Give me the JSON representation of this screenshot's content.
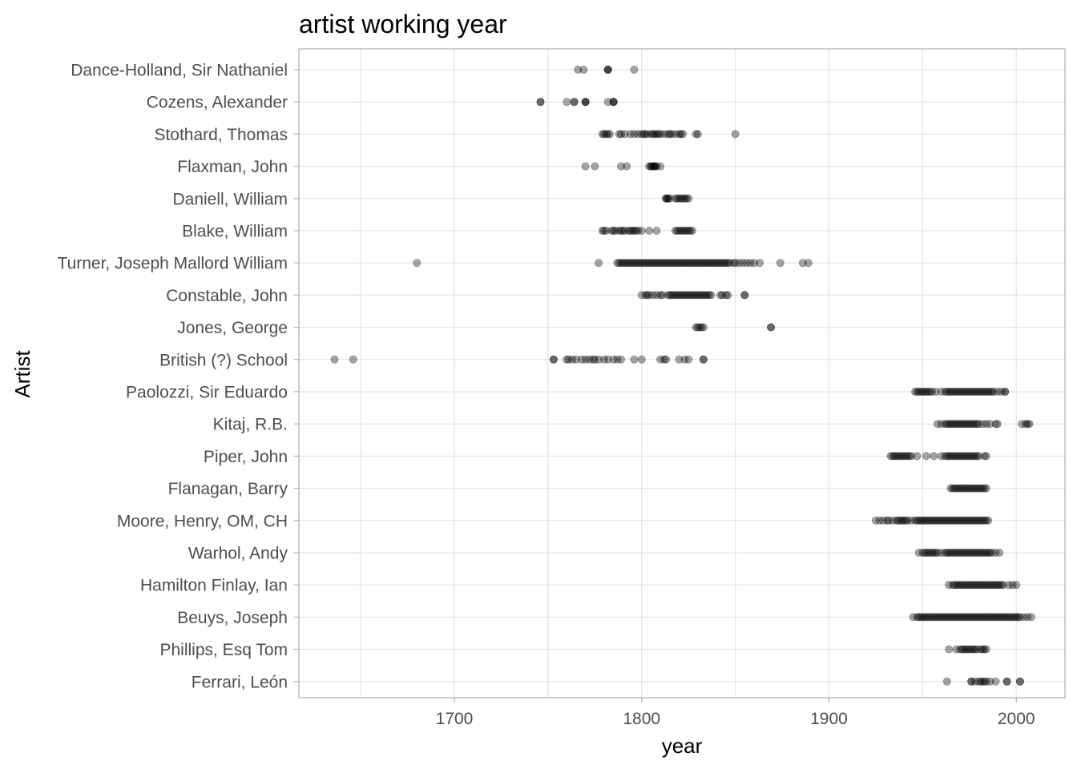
{
  "chart_data": {
    "type": "scatter",
    "title": "artist working year",
    "xlabel": "year",
    "ylabel": "Artist",
    "xlim": [
      1617,
      2026
    ],
    "x_ticks": [
      1700,
      1800,
      1900,
      2000
    ],
    "grid": true,
    "point_color": "#000000",
    "point_opacity": 0.35,
    "categories": [
      "Dance-Holland, Sir Nathaniel",
      "Cozens, Alexander",
      "Stothard, Thomas",
      "Flaxman, John",
      "Daniell, William",
      "Blake, William",
      "Turner, Joseph Mallord William",
      "Constable, John",
      "Jones, George",
      "British (?) School",
      "Paolozzi, Sir Eduardo",
      "Kitaj, R.B.",
      "Piper, John",
      "Flanagan, Barry",
      "Moore, Henry, OM, CH",
      "Warhol, Andy",
      "Hamilton Finlay, Ian",
      "Beuys, Joseph",
      "Phillips, Esq Tom",
      "Ferrari, León"
    ],
    "series": [
      {
        "category": "Dance-Holland, Sir Nathaniel",
        "years": [
          1766,
          1769,
          1782,
          1782,
          1782,
          1796
        ]
      },
      {
        "category": "Cozens, Alexander",
        "years": [
          1746,
          1746,
          1760,
          1764,
          1764,
          1770,
          1770,
          1770,
          1782,
          1785,
          1785,
          1785
        ]
      },
      {
        "category": "Stothard, Thomas",
        "years": [
          1779,
          1780,
          1781,
          1782,
          1783,
          1788,
          1789,
          1791,
          1794,
          1796,
          1798,
          1800,
          1801,
          1802,
          1803,
          1805,
          1806,
          1807,
          1808,
          1809,
          1810,
          1812,
          1814,
          1815,
          1816,
          1818,
          1820,
          1821,
          1822,
          1829,
          1830,
          1850
        ]
      },
      {
        "category": "Flaxman, John",
        "years": [
          1770,
          1775,
          1789,
          1792,
          1804,
          1805,
          1805,
          1806,
          1807,
          1807,
          1807,
          1808,
          1810
        ]
      },
      {
        "category": "Daniell, William",
        "years": [
          1813,
          1813,
          1814,
          1814,
          1815,
          1818,
          1819,
          1820,
          1821,
          1822,
          1823,
          1824,
          1825
        ]
      },
      {
        "category": "Blake, William",
        "years": [
          1779,
          1780,
          1781,
          1784,
          1785,
          1786,
          1788,
          1789,
          1790,
          1791,
          1793,
          1794,
          1795,
          1796,
          1797,
          1798,
          1800,
          1804,
          1808,
          1818,
          1819,
          1820,
          1821,
          1822,
          1823,
          1824,
          1825,
          1826,
          1827
        ]
      },
      {
        "category": "Turner, Joseph Mallord William",
        "years": [
          1680,
          1777,
          1787,
          1788,
          1789,
          1790,
          1791,
          1792,
          1793,
          1794,
          1795,
          1796,
          1797,
          1798,
          1799,
          1800,
          1801,
          1802,
          1803,
          1804,
          1805,
          1806,
          1807,
          1808,
          1809,
          1810,
          1811,
          1812,
          1813,
          1814,
          1815,
          1816,
          1817,
          1818,
          1819,
          1820,
          1821,
          1822,
          1823,
          1824,
          1825,
          1826,
          1827,
          1828,
          1829,
          1830,
          1831,
          1832,
          1833,
          1834,
          1835,
          1836,
          1837,
          1838,
          1839,
          1840,
          1841,
          1842,
          1843,
          1844,
          1845,
          1846,
          1847,
          1849,
          1850,
          1852,
          1854,
          1856,
          1858,
          1860,
          1863,
          1874,
          1886,
          1889
        ]
      },
      {
        "category": "Constable, John",
        "years": [
          1800,
          1802,
          1803,
          1804,
          1806,
          1808,
          1810,
          1811,
          1814,
          1815,
          1816,
          1817,
          1818,
          1819,
          1820,
          1821,
          1822,
          1823,
          1824,
          1825,
          1826,
          1827,
          1828,
          1829,
          1830,
          1831,
          1832,
          1833,
          1834,
          1835,
          1836,
          1837,
          1842,
          1843,
          1845,
          1846,
          1855,
          1855
        ]
      },
      {
        "category": "Jones, George",
        "years": [
          1829,
          1830,
          1831,
          1832,
          1833,
          1869,
          1869
        ]
      },
      {
        "category": "British (?) School",
        "years": [
          1636,
          1646,
          1753,
          1753,
          1760,
          1761,
          1763,
          1765,
          1768,
          1770,
          1772,
          1774,
          1775,
          1777,
          1780,
          1782,
          1785,
          1787,
          1789,
          1796,
          1800,
          1810,
          1812,
          1813,
          1820,
          1823,
          1825,
          1833,
          1833
        ]
      },
      {
        "category": "Paolozzi, Sir Eduardo",
        "years": [
          1946,
          1947,
          1948,
          1949,
          1950,
          1951,
          1952,
          1953,
          1954,
          1955,
          1957,
          1960,
          1962,
          1963,
          1964,
          1965,
          1966,
          1967,
          1968,
          1969,
          1970,
          1971,
          1972,
          1973,
          1974,
          1975,
          1976,
          1977,
          1978,
          1979,
          1980,
          1981,
          1982,
          1983,
          1984,
          1985,
          1986,
          1987,
          1988,
          1990,
          1992,
          1994,
          1994
        ]
      },
      {
        "category": "Kitaj, R.B.",
        "years": [
          1958,
          1960,
          1962,
          1963,
          1964,
          1965,
          1966,
          1967,
          1968,
          1969,
          1970,
          1971,
          1972,
          1973,
          1974,
          1975,
          1976,
          1977,
          1978,
          1979,
          1980,
          1982,
          1984,
          1986,
          1989,
          1990,
          2003,
          2005,
          2006,
          2007
        ]
      },
      {
        "category": "Piper, John",
        "years": [
          1933,
          1934,
          1935,
          1936,
          1937,
          1938,
          1939,
          1940,
          1941,
          1942,
          1943,
          1944,
          1947,
          1952,
          1956,
          1960,
          1962,
          1963,
          1964,
          1965,
          1966,
          1967,
          1968,
          1969,
          1970,
          1971,
          1972,
          1973,
          1974,
          1975,
          1976,
          1977,
          1978,
          1979,
          1980,
          1983,
          1984
        ]
      },
      {
        "category": "Flanagan, Barry",
        "years": [
          1965,
          1966,
          1967,
          1968,
          1969,
          1970,
          1971,
          1972,
          1973,
          1974,
          1975,
          1976,
          1977,
          1978,
          1979,
          1980,
          1981,
          1982,
          1983,
          1984
        ]
      },
      {
        "category": "Moore, Henry, OM, CH",
        "years": [
          1925,
          1927,
          1929,
          1931,
          1932,
          1934,
          1936,
          1937,
          1938,
          1939,
          1940,
          1941,
          1942,
          1944,
          1946,
          1947,
          1948,
          1949,
          1950,
          1951,
          1952,
          1953,
          1954,
          1955,
          1956,
          1957,
          1958,
          1959,
          1960,
          1961,
          1962,
          1963,
          1964,
          1965,
          1966,
          1967,
          1968,
          1969,
          1970,
          1971,
          1972,
          1973,
          1974,
          1975,
          1976,
          1977,
          1978,
          1979,
          1980,
          1981,
          1982,
          1983,
          1984,
          1985
        ]
      },
      {
        "category": "Warhol, Andy",
        "years": [
          1948,
          1950,
          1951,
          1952,
          1953,
          1954,
          1955,
          1956,
          1957,
          1958,
          1960,
          1962,
          1963,
          1964,
          1965,
          1966,
          1967,
          1968,
          1969,
          1970,
          1971,
          1972,
          1973,
          1974,
          1975,
          1976,
          1977,
          1978,
          1979,
          1980,
          1981,
          1982,
          1983,
          1984,
          1985,
          1986,
          1987,
          1989,
          1991
        ]
      },
      {
        "category": "Hamilton Finlay, Ian",
        "years": [
          1964,
          1966,
          1967,
          1968,
          1969,
          1970,
          1971,
          1972,
          1973,
          1974,
          1975,
          1976,
          1977,
          1978,
          1979,
          1980,
          1981,
          1982,
          1983,
          1984,
          1985,
          1986,
          1987,
          1988,
          1989,
          1990,
          1991,
          1992,
          1993,
          1996,
          1998,
          2000
        ]
      },
      {
        "category": "Beuys, Joseph",
        "years": [
          1945,
          1947,
          1948,
          1949,
          1950,
          1951,
          1952,
          1953,
          1954,
          1955,
          1956,
          1957,
          1958,
          1959,
          1960,
          1961,
          1962,
          1963,
          1964,
          1965,
          1966,
          1967,
          1968,
          1969,
          1970,
          1971,
          1972,
          1973,
          1974,
          1975,
          1976,
          1977,
          1978,
          1979,
          1980,
          1981,
          1982,
          1983,
          1984,
          1985,
          1986,
          1987,
          1988,
          1989,
          1990,
          1991,
          1992,
          1993,
          1994,
          1995,
          1996,
          1997,
          1998,
          1999,
          2000,
          2001,
          2002,
          2004,
          2006,
          2008
        ]
      },
      {
        "category": "Phillips, Esq Tom",
        "years": [
          1964,
          1968,
          1970,
          1971,
          1972,
          1973,
          1974,
          1975,
          1976,
          1977,
          1978,
          1979,
          1981,
          1982,
          1983,
          1984
        ]
      },
      {
        "category": "Ferrari, León",
        "years": [
          1963,
          1976,
          1976,
          1978,
          1980,
          1981,
          1982,
          1983,
          1984,
          1986,
          1989,
          1995,
          1995,
          2002,
          2002
        ]
      }
    ]
  }
}
